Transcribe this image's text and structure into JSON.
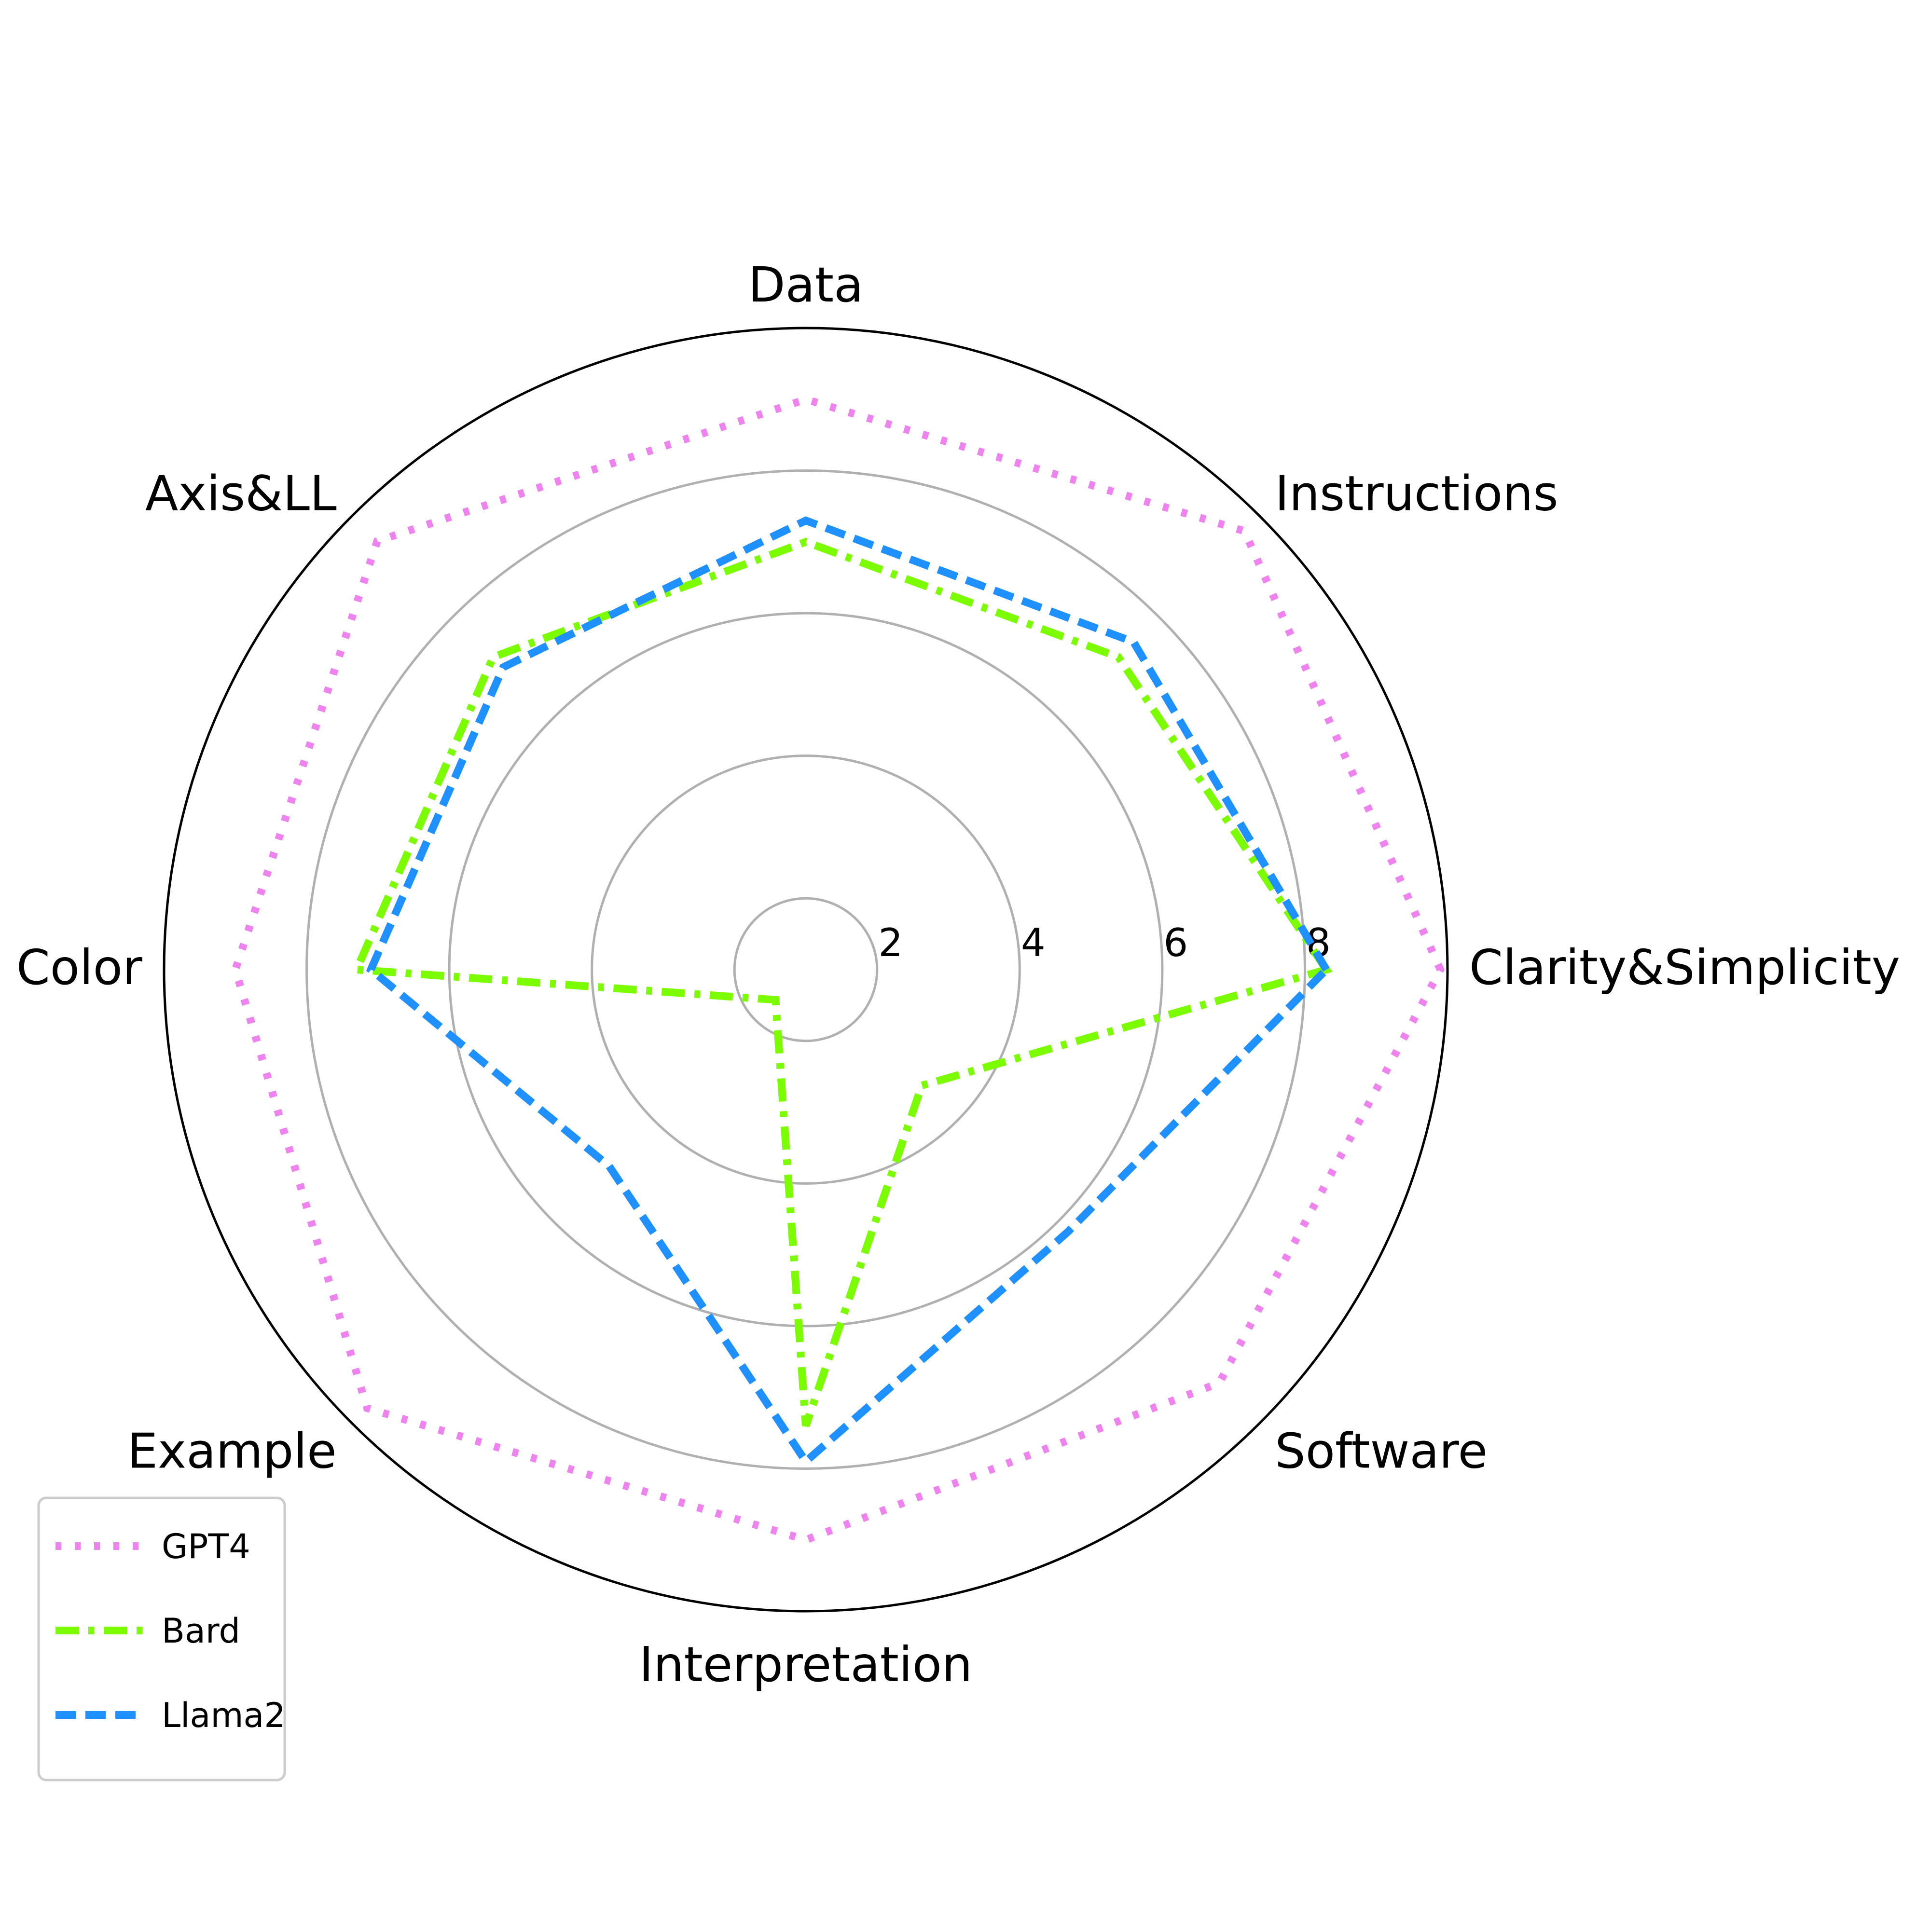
{
  "chart_data": {
    "type": "radar",
    "categories": [
      "Clarity&Simplicity",
      "Instructions",
      "Data",
      "Axis&LL",
      "Color",
      "Example",
      "Interpretation",
      "Software"
    ],
    "r_range": [
      1,
      10
    ],
    "r_ticks": [
      2,
      4,
      6,
      8
    ],
    "r_tick_labels": [
      "2",
      "4",
      "6",
      "8"
    ],
    "grid": true,
    "legend_position": "lower-left",
    "series": [
      {
        "name": "GPT4",
        "values": [
          9.9,
          9.7,
          9.0,
          9.5,
          9.0,
          9.7,
          9.0,
          9.2
        ],
        "color": "#ee82ee",
        "line_style": "dotted"
      },
      {
        "name": "Bard",
        "values": [
          8.3,
          7.2,
          7.0,
          7.2,
          7.3,
          1.6,
          7.4,
          3.3
        ],
        "color": "#7cfc00",
        "line_style": "dashdot"
      },
      {
        "name": "Llama2",
        "values": [
          8.3,
          7.5,
          7.3,
          7.0,
          7.1,
          4.9,
          7.9,
          6.2
        ],
        "color": "#1e90ff",
        "line_style": "dashed"
      }
    ]
  }
}
